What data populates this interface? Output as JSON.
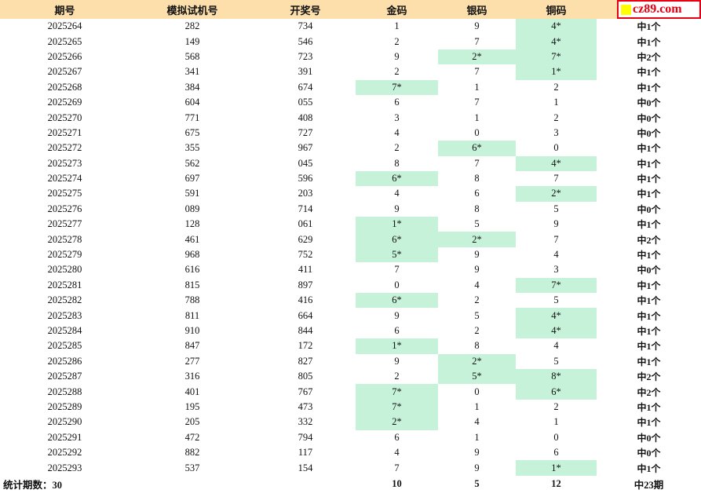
{
  "header": {
    "columns": [
      "期号",
      "模拟试机号",
      "开奖号",
      "金码",
      "银码",
      "铜码"
    ],
    "logo": {
      "text": "cz89.com",
      "square_icon": "yellow-square-icon",
      "text_color": "#E60012",
      "square_color": "#FFFF00"
    }
  },
  "colors": {
    "header_bg": "#FCDFAB",
    "highlight_bg": "#C5F2D9",
    "logo_border": "#E60012"
  },
  "rows": [
    {
      "issue": "2025264",
      "sim": "282",
      "draw": "734",
      "gold": "1",
      "silver": "9",
      "copper": "4*",
      "hit": "中1个"
    },
    {
      "issue": "2025265",
      "sim": "149",
      "draw": "546",
      "gold": "2",
      "silver": "7",
      "copper": "4*",
      "hit": "中1个"
    },
    {
      "issue": "2025266",
      "sim": "568",
      "draw": "723",
      "gold": "9",
      "silver": "2*",
      "copper": "7*",
      "hit": "中2个"
    },
    {
      "issue": "2025267",
      "sim": "341",
      "draw": "391",
      "gold": "2",
      "silver": "7",
      "copper": "1*",
      "hit": "中1个"
    },
    {
      "issue": "2025268",
      "sim": "384",
      "draw": "674",
      "gold": "7*",
      "silver": "1",
      "copper": "2",
      "hit": "中1个"
    },
    {
      "issue": "2025269",
      "sim": "604",
      "draw": "055",
      "gold": "6",
      "silver": "7",
      "copper": "1",
      "hit": "中0个"
    },
    {
      "issue": "2025270",
      "sim": "771",
      "draw": "408",
      "gold": "3",
      "silver": "1",
      "copper": "2",
      "hit": "中0个"
    },
    {
      "issue": "2025271",
      "sim": "675",
      "draw": "727",
      "gold": "4",
      "silver": "0",
      "copper": "3",
      "hit": "中0个"
    },
    {
      "issue": "2025272",
      "sim": "355",
      "draw": "967",
      "gold": "2",
      "silver": "6*",
      "copper": "0",
      "hit": "中1个"
    },
    {
      "issue": "2025273",
      "sim": "562",
      "draw": "045",
      "gold": "8",
      "silver": "7",
      "copper": "4*",
      "hit": "中1个"
    },
    {
      "issue": "2025274",
      "sim": "697",
      "draw": "596",
      "gold": "6*",
      "silver": "8",
      "copper": "7",
      "hit": "中1个"
    },
    {
      "issue": "2025275",
      "sim": "591",
      "draw": "203",
      "gold": "4",
      "silver": "6",
      "copper": "2*",
      "hit": "中1个"
    },
    {
      "issue": "2025276",
      "sim": "089",
      "draw": "714",
      "gold": "9",
      "silver": "8",
      "copper": "5",
      "hit": "中0个"
    },
    {
      "issue": "2025277",
      "sim": "128",
      "draw": "061",
      "gold": "1*",
      "silver": "5",
      "copper": "9",
      "hit": "中1个"
    },
    {
      "issue": "2025278",
      "sim": "461",
      "draw": "629",
      "gold": "6*",
      "silver": "2*",
      "copper": "7",
      "hit": "中2个"
    },
    {
      "issue": "2025279",
      "sim": "968",
      "draw": "752",
      "gold": "5*",
      "silver": "9",
      "copper": "4",
      "hit": "中1个"
    },
    {
      "issue": "2025280",
      "sim": "616",
      "draw": "411",
      "gold": "7",
      "silver": "9",
      "copper": "3",
      "hit": "中0个"
    },
    {
      "issue": "2025281",
      "sim": "815",
      "draw": "897",
      "gold": "0",
      "silver": "4",
      "copper": "7*",
      "hit": "中1个"
    },
    {
      "issue": "2025282",
      "sim": "788",
      "draw": "416",
      "gold": "6*",
      "silver": "2",
      "copper": "5",
      "hit": "中1个"
    },
    {
      "issue": "2025283",
      "sim": "811",
      "draw": "664",
      "gold": "9",
      "silver": "5",
      "copper": "4*",
      "hit": "中1个"
    },
    {
      "issue": "2025284",
      "sim": "910",
      "draw": "844",
      "gold": "6",
      "silver": "2",
      "copper": "4*",
      "hit": "中1个"
    },
    {
      "issue": "2025285",
      "sim": "847",
      "draw": "172",
      "gold": "1*",
      "silver": "8",
      "copper": "4",
      "hit": "中1个"
    },
    {
      "issue": "2025286",
      "sim": "277",
      "draw": "827",
      "gold": "9",
      "silver": "2*",
      "copper": "5",
      "hit": "中1个"
    },
    {
      "issue": "2025287",
      "sim": "316",
      "draw": "805",
      "gold": "2",
      "silver": "5*",
      "copper": "8*",
      "hit": "中2个"
    },
    {
      "issue": "2025288",
      "sim": "401",
      "draw": "767",
      "gold": "7*",
      "silver": "0",
      "copper": "6*",
      "hit": "中2个"
    },
    {
      "issue": "2025289",
      "sim": "195",
      "draw": "473",
      "gold": "7*",
      "silver": "1",
      "copper": "2",
      "hit": "中1个"
    },
    {
      "issue": "2025290",
      "sim": "205",
      "draw": "332",
      "gold": "2*",
      "silver": "4",
      "copper": "1",
      "hit": "中1个"
    },
    {
      "issue": "2025291",
      "sim": "472",
      "draw": "794",
      "gold": "6",
      "silver": "1",
      "copper": "0",
      "hit": "中0个"
    },
    {
      "issue": "2025292",
      "sim": "882",
      "draw": "117",
      "gold": "4",
      "silver": "9",
      "copper": "6",
      "hit": "中0个"
    },
    {
      "issue": "2025293",
      "sim": "537",
      "draw": "154",
      "gold": "7",
      "silver": "9",
      "copper": "1*",
      "hit": "中1个"
    }
  ],
  "footer": {
    "label": "统计期数：30",
    "gold_total": "10",
    "silver_total": "5",
    "copper_total": "12",
    "hit_total": "中23期"
  }
}
